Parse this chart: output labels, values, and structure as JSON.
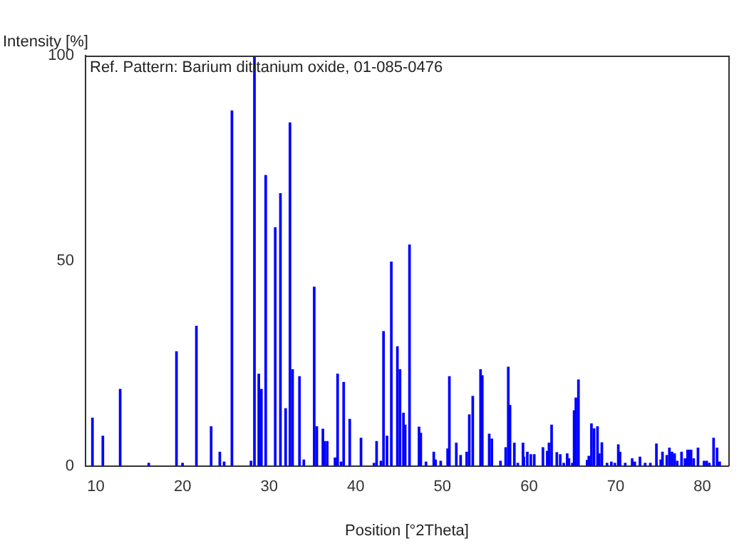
{
  "chart_data": {
    "type": "bar",
    "title": "Ref. Pattern: Barium dititanium oxide, 01-085-0476",
    "xlabel": "Position [°2Theta]",
    "ylabel": "Intensity [%]",
    "x": [
      9.6,
      10.8,
      12.8,
      16.1,
      19.3,
      20.0,
      21.6,
      23.3,
      24.3,
      24.8,
      25.7,
      27.9,
      28.3,
      28.8,
      29.1,
      29.6,
      30.7,
      31.3,
      31.9,
      32.4,
      32.7,
      33.5,
      34.0,
      35.2,
      35.5,
      36.2,
      36.4,
      36.7,
      37.6,
      37.9,
      38.3,
      38.6,
      39.3,
      40.6,
      42.1,
      42.4,
      42.9,
      43.2,
      43.6,
      44.1,
      44.8,
      45.1,
      45.5,
      45.7,
      46.2,
      47.3,
      47.5,
      48.1,
      49.0,
      49.2,
      49.8,
      50.6,
      50.8,
      51.6,
      52.1,
      52.8,
      53.1,
      53.5,
      54.4,
      54.6,
      55.4,
      55.7,
      56.7,
      57.3,
      57.6,
      57.8,
      58.3,
      58.7,
      59.3,
      59.4,
      59.8,
      60.2,
      60.6,
      61.6,
      62.1,
      62.3,
      62.6,
      63.2,
      63.6,
      64.0,
      64.4,
      64.6,
      65.0,
      65.2,
      65.4,
      65.7,
      66.7,
      66.9,
      67.2,
      67.5,
      67.9,
      68.1,
      68.4,
      69.0,
      69.5,
      69.9,
      70.3,
      70.5,
      71.1,
      71.9,
      72.2,
      72.8,
      73.4,
      74.0,
      74.7,
      75.2,
      75.4,
      75.9,
      76.2,
      76.5,
      76.8,
      77.1,
      77.6,
      78.0,
      78.3,
      78.5,
      78.7,
      79.0,
      79.5,
      80.2,
      80.5,
      80.8,
      81.3,
      81.7,
      82.0
    ],
    "values": [
      11.7,
      7.3,
      18.7,
      0.7,
      27.9,
      0.7,
      34.1,
      9.6,
      3.4,
      1,
      86.5,
      1.2,
      100,
      22.4,
      18.7,
      70.8,
      58.1,
      66.4,
      14,
      83.6,
      23.5,
      21.8,
      1.5,
      43.6,
      9.6,
      9,
      6,
      6,
      2,
      22.4,
      1,
      20.4,
      11.4,
      6.8,
      0.7,
      6,
      1.2,
      32.8,
      7.3,
      49.7,
      29.1,
      23.5,
      12.9,
      10,
      53.9,
      9.5,
      8,
      1,
      3.4,
      1.5,
      1.2,
      4.2,
      21.8,
      5.6,
      2.6,
      3.4,
      12.5,
      17,
      23.5,
      22,
      7.8,
      6.6,
      1.2,
      4.5,
      24.1,
      14.8,
      5.6,
      0.7,
      5.6,
      2.2,
      3.4,
      2.8,
      2.8,
      4.5,
      3.6,
      5.6,
      10,
      3.3,
      2.8,
      0.7,
      3,
      1.8,
      0.7,
      13.5,
      16.6,
      21,
      1.4,
      2.4,
      10.3,
      9.1,
      9.6,
      3,
      5.7,
      0.7,
      1,
      0.7,
      5.2,
      3.4,
      0.7,
      1.8,
      1,
      2.2,
      0.7,
      0.7,
      5.4,
      1.5,
      3.4,
      2.6,
      4.4,
      3.4,
      3,
      1.2,
      3.4,
      1.8,
      3.9,
      3.9,
      3.9,
      1.8,
      4.4,
      1.2,
      1.2,
      0.7,
      6.8,
      4.4,
      1
    ],
    "color": "#0000ff",
    "xlim": [
      8.8,
      83
    ],
    "xticks": [
      10,
      20,
      30,
      40,
      50,
      60,
      70,
      80
    ],
    "ylim": [
      0,
      100
    ],
    "yticks": [
      0,
      50,
      100
    ],
    "grid": false,
    "legend": false
  }
}
